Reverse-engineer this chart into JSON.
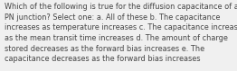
{
  "lines": [
    "Which of the following is true for the diffusion capacitance of a",
    "PN junction? Select one: a. All of these b. The capacitance",
    "increases as temperature increases c. The capacitance increases",
    "as the mean transit time increases d. The amount of charge",
    "stored decreases as the forward bias increases e. The",
    "capacitance decreases as the forward bias increases"
  ],
  "font_size": 5.9,
  "text_color": "#444444",
  "background_color": "#f0f0f0"
}
